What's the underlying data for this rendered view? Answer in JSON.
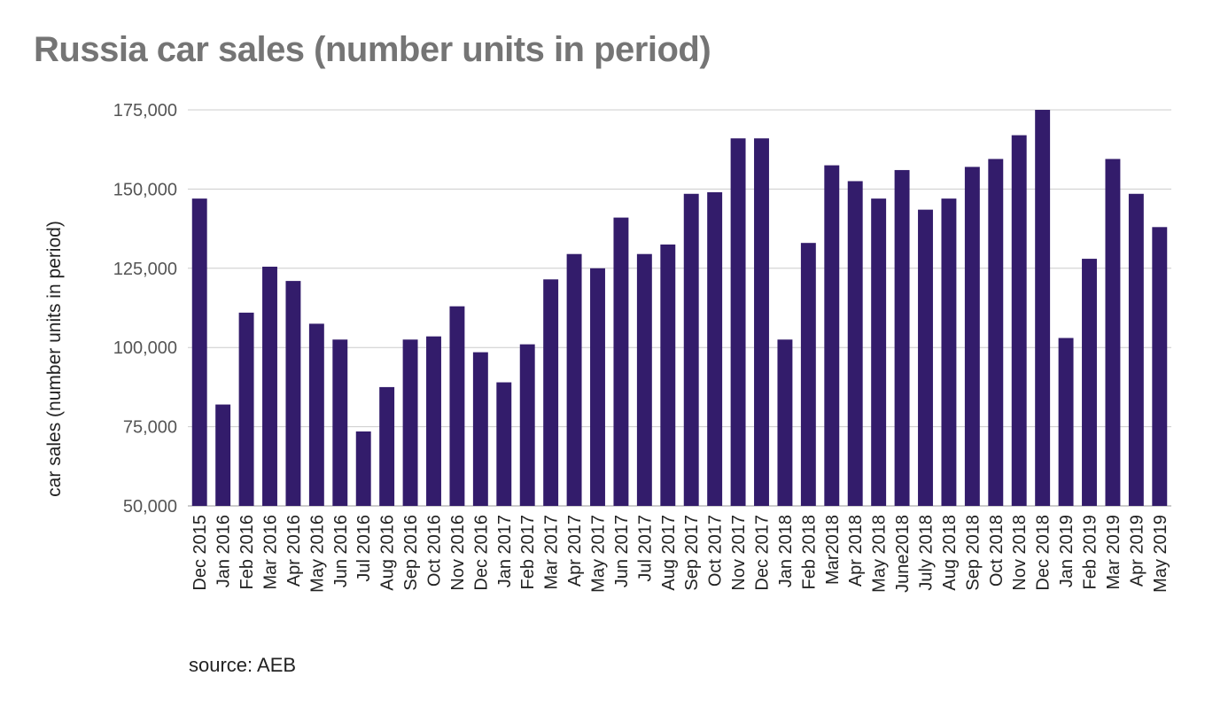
{
  "title": "Russia car sales (number units in period)",
  "source": "source: AEB",
  "chart_data": {
    "type": "bar",
    "title": "Russia car sales (number units in period)",
    "xlabel": "",
    "ylabel": "car sales (number units in period)",
    "ylim": [
      50000,
      175000
    ],
    "yticks": [
      50000,
      75000,
      100000,
      125000,
      150000,
      175000
    ],
    "ytick_labels": [
      "50,000",
      "75,000",
      "100,000",
      "125,000",
      "150,000",
      "175,000"
    ],
    "grid": true,
    "bar_color": "#331c6b",
    "categories": [
      "Dec 2015",
      "Jan 2016",
      "Feb 2016",
      "Mar 2016",
      "Apr 2016",
      "May 2016",
      "Jun 2016",
      "Jul 2016",
      "Aug 2016",
      "Sep 2016",
      "Oct 2016",
      "Nov 2016",
      "Dec 2016",
      "Jan 2017",
      "Feb 2017",
      "Mar 2017",
      "Apr 2017",
      "May 2017",
      "Jun 2017",
      "Jul 2017",
      "Aug 2017",
      "Sep 2017",
      "Oct 2017",
      "Nov 2017",
      "Dec 2017",
      "Jan 2018",
      "Feb 2018",
      "Mar2018",
      "Apr 2018",
      "May 2018",
      "June2018",
      "July 2018",
      "Aug 2018",
      "Sep 2018",
      "Oct 2018",
      "Nov 2018",
      "Dec 2018",
      "Jan 2019",
      "Feb 2019",
      "Mar 2019",
      "Apr 2019",
      "May 2019"
    ],
    "values": [
      147000,
      82000,
      111000,
      125500,
      121000,
      107500,
      102500,
      73500,
      87500,
      102500,
      103500,
      113000,
      98500,
      89000,
      101000,
      121500,
      129500,
      125000,
      141000,
      129500,
      132500,
      148500,
      149000,
      166000,
      166000,
      102500,
      133000,
      157500,
      152500,
      147000,
      156000,
      143500,
      147000,
      157000,
      159500,
      167000,
      175000,
      103000,
      128000,
      159500,
      148500,
      138000
    ]
  }
}
